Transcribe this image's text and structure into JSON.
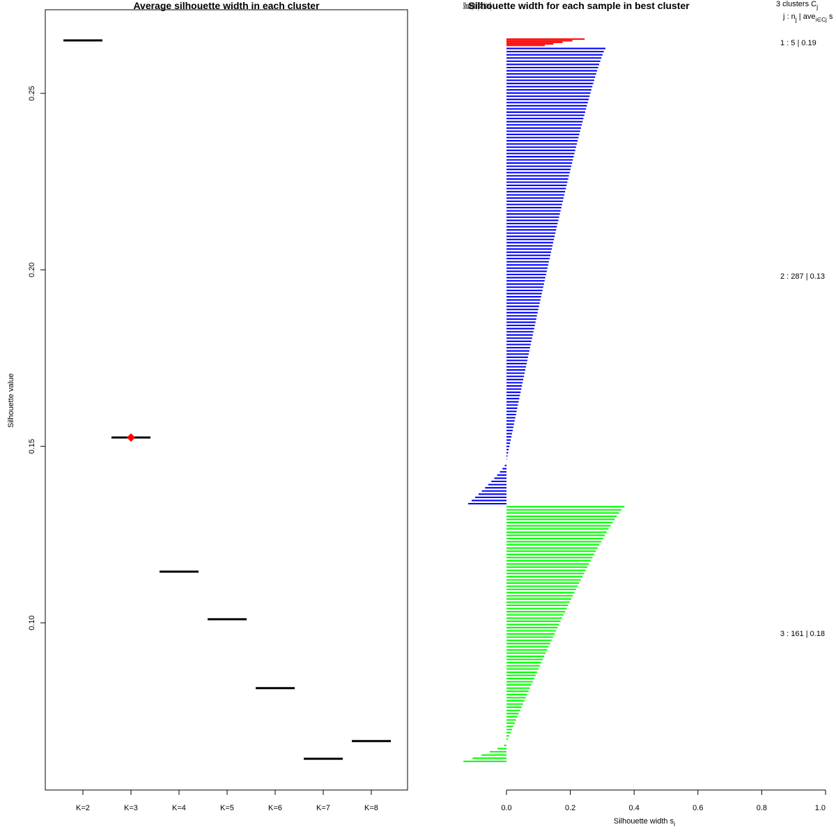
{
  "chart_data": [
    {
      "type": "line",
      "title": "Average silhouette width in each cluster",
      "xlabel": "",
      "ylabel": "Silhouette value",
      "categories": [
        "K=2",
        "K=3",
        "K=4",
        "K=5",
        "K=6",
        "K=7",
        "K=8"
      ],
      "values": [
        0.265,
        0.1525,
        0.1145,
        0.101,
        0.0815,
        0.0615,
        0.0665
      ],
      "best_index": 1,
      "best_marker_color": "#ff0000",
      "yticks": [
        0.1,
        0.15,
        0.2,
        0.25
      ],
      "ytick_labels": [
        "0.10",
        "0.15",
        "0.20",
        "0.25"
      ],
      "ylim": [
        0.054,
        0.2725
      ]
    },
    {
      "type": "bar",
      "orientation": "horizontal",
      "title": "Silhouette width for each sample in best cluster",
      "overlapped_title": "Silhouette plot of (x = cl, dist = sil)",
      "xlabel": "Silhouette width s",
      "xlabel_subscript": "i",
      "xlim": [
        0,
        1
      ],
      "xticks": [
        0,
        0.2,
        0.4,
        0.6,
        0.8,
        1.0
      ],
      "xtick_labels": [
        "0.0",
        "0.2",
        "0.4",
        "0.6",
        "0.8",
        "1.0"
      ],
      "legend_header": {
        "line1": "3 clusters C",
        "line1_sub": "j",
        "line2_a": "j : n",
        "line2_sub1": "j",
        "line2_b": " | ave",
        "line2_sub2": "i∈Cj",
        "line2_c": " s"
      },
      "clusters": [
        {
          "id": 1,
          "n": 5,
          "avg": "0.19",
          "label": "1 :  5  |  0.19",
          "color": "#ff0000",
          "max": 0.245,
          "min": 0.12,
          "tail_min": 0.12,
          "neg_count": 0
        },
        {
          "id": 2,
          "n": 287,
          "avg": "0.13",
          "label": "2 :  287  |  0.13",
          "color": "#0000ff",
          "max": 0.31,
          "min": -0.12,
          "tail_min": 0.0,
          "neg_count": 27
        },
        {
          "id": 3,
          "n": 161,
          "avg": "0.18",
          "label": "3 :  161  |  0.18",
          "color": "#00ff00",
          "max": 0.37,
          "min": -0.135,
          "tail_min": 0.0,
          "neg_count": 12
        }
      ]
    }
  ]
}
